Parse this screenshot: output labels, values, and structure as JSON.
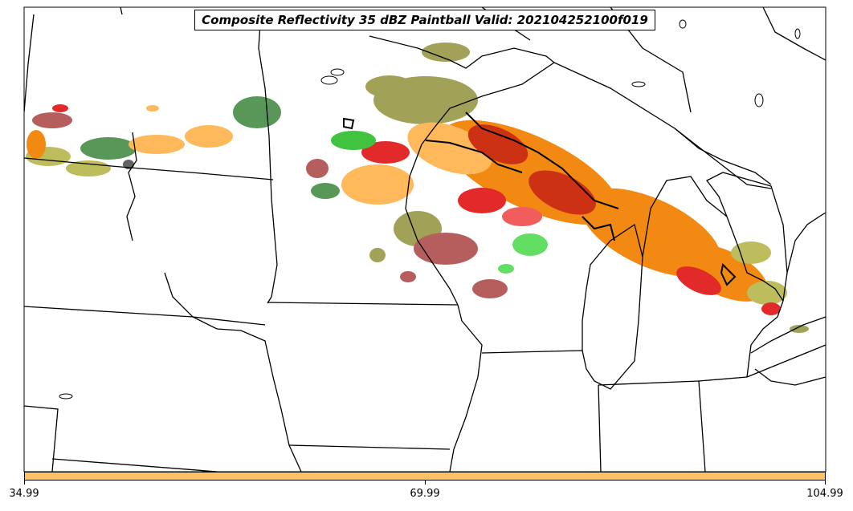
{
  "title": "Composite Reflectivity 35 dBZ Paintball Valid: 202104252100f019",
  "colorbar": {
    "fill_color": "#ffc266",
    "ticks": [
      "34.99",
      "69.99",
      "104.99"
    ]
  },
  "colors": {
    "olive": "#9a9a4a",
    "orange": "#f08000",
    "light_orange": "#ffb24d",
    "red": "#e01818",
    "dark_red": "#c82000",
    "light_red": "#f05050",
    "brownish_red": "#b05050",
    "green": "#30c030",
    "light_green": "#55dd55",
    "dark_green": "#4a8f4a",
    "khaki": "#b8b850",
    "gray": "#555555",
    "outline": "#000000"
  }
}
